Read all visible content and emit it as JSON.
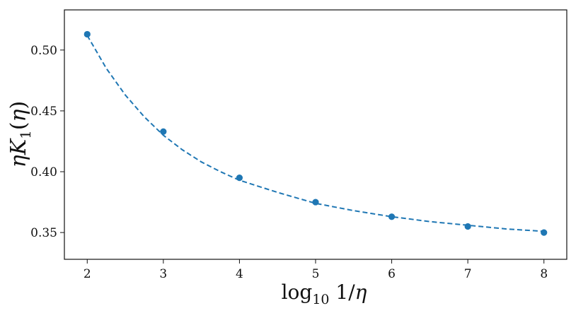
{
  "chart_data": {
    "type": "scatter",
    "xlabel": "log10 1/η",
    "ylabel": "ηK1(η)",
    "xlim": [
      1.7,
      8.3
    ],
    "ylim": [
      0.328,
      0.533
    ],
    "grid": false,
    "xticks": [
      2,
      3,
      4,
      5,
      6,
      7,
      8
    ],
    "yticks": [
      0.35,
      0.4,
      0.45,
      0.5
    ],
    "xtick_labels": [
      "2",
      "3",
      "4",
      "5",
      "6",
      "7",
      "8"
    ],
    "ytick_labels": [
      "0.35",
      "0.40",
      "0.45",
      "0.50"
    ],
    "series": [
      {
        "style": "markers",
        "color": "#1f77b4",
        "x": [
          2,
          3,
          4,
          5,
          6,
          7,
          8
        ],
        "y": [
          0.513,
          0.433,
          0.395,
          0.375,
          0.363,
          0.355,
          0.35
        ]
      },
      {
        "style": "dashed-line",
        "color": "#1f77b4",
        "x": [
          2.0,
          2.25,
          2.5,
          2.75,
          3.0,
          3.25,
          3.5,
          3.75,
          4.0,
          4.5,
          5.0,
          5.5,
          6.0,
          6.5,
          7.0,
          7.5,
          8.0
        ],
        "y": [
          0.512,
          0.485,
          0.463,
          0.445,
          0.43,
          0.418,
          0.408,
          0.4,
          0.393,
          0.383,
          0.374,
          0.368,
          0.363,
          0.359,
          0.356,
          0.353,
          0.351
        ]
      }
    ]
  }
}
